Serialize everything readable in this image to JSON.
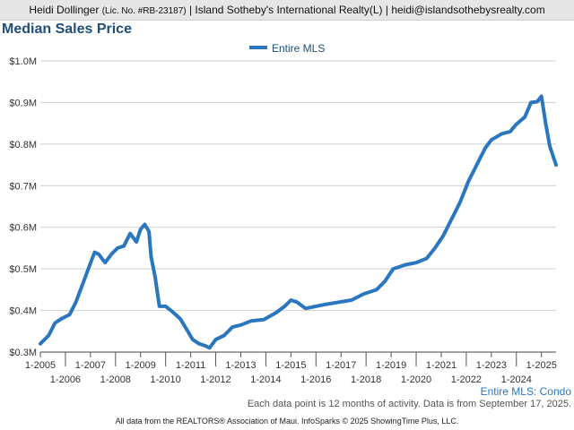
{
  "header": {
    "agent_name": "Heidi Dollinger",
    "license": "(Lic. No. #RB-23187)",
    "brokerage": "| Island Sotheby's International Realty(L) |",
    "email": "heidi@islandsothebysrealty.com"
  },
  "footer": {
    "segment": "Entire MLS: Condo",
    "note": "Each data point is 12 months of activity. Data is from September 17, 2025.",
    "credit": "All data from the REALTORS® Association of Maui. InfoSparks © 2025 ShowingTime Plus, LLC."
  },
  "colors": {
    "series": "#2a77bf",
    "title": "#1f4e79"
  },
  "chart_data": {
    "type": "line",
    "title": "Median Sales Price",
    "legend": {
      "placement": "top-center"
    },
    "grid": true,
    "ylim": [
      300000,
      1000000
    ],
    "yticks": [
      {
        "value": 300000,
        "label": "$0.3M"
      },
      {
        "value": 400000,
        "label": "$0.4M"
      },
      {
        "value": 500000,
        "label": "$0.5M"
      },
      {
        "value": 600000,
        "label": "$0.6M"
      },
      {
        "value": 700000,
        "label": "$0.7M"
      },
      {
        "value": 800000,
        "label": "$0.8M"
      },
      {
        "value": 900000,
        "label": "$0.9M"
      },
      {
        "value": 1000000,
        "label": "$1.0M"
      }
    ],
    "xlim": [
      "2005-01",
      "2025-08"
    ],
    "xticks": [
      "1-2005",
      "1-2006",
      "1-2007",
      "1-2008",
      "1-2009",
      "1-2010",
      "1-2011",
      "1-2012",
      "1-2013",
      "1-2014",
      "1-2015",
      "1-2016",
      "1-2017",
      "1-2018",
      "1-2019",
      "1-2020",
      "1-2021",
      "1-2022",
      "1-2023",
      "1-2024",
      "1-2025"
    ],
    "series": [
      {
        "name": "Entire MLS",
        "points": [
          [
            "2005-01",
            320000
          ],
          [
            "2005-05",
            340000
          ],
          [
            "2005-08",
            370000
          ],
          [
            "2005-11",
            380000
          ],
          [
            "2006-03",
            390000
          ],
          [
            "2006-06",
            420000
          ],
          [
            "2006-09",
            460000
          ],
          [
            "2006-12",
            500000
          ],
          [
            "2007-03",
            540000
          ],
          [
            "2007-05",
            535000
          ],
          [
            "2007-08",
            515000
          ],
          [
            "2007-11",
            535000
          ],
          [
            "2008-02",
            550000
          ],
          [
            "2008-05",
            555000
          ],
          [
            "2008-08",
            585000
          ],
          [
            "2008-11",
            565000
          ],
          [
            "2009-01",
            595000
          ],
          [
            "2009-03",
            607000
          ],
          [
            "2009-05",
            590000
          ],
          [
            "2009-06",
            530000
          ],
          [
            "2009-08",
            480000
          ],
          [
            "2009-10",
            410000
          ],
          [
            "2010-01",
            410000
          ],
          [
            "2010-04",
            398000
          ],
          [
            "2010-08",
            380000
          ],
          [
            "2010-11",
            355000
          ],
          [
            "2011-02",
            330000
          ],
          [
            "2011-05",
            320000
          ],
          [
            "2011-08",
            315000
          ],
          [
            "2011-10",
            310000
          ],
          [
            "2012-01",
            330000
          ],
          [
            "2012-05",
            340000
          ],
          [
            "2012-09",
            360000
          ],
          [
            "2013-01",
            365000
          ],
          [
            "2013-06",
            375000
          ],
          [
            "2013-12",
            378000
          ],
          [
            "2014-06",
            395000
          ],
          [
            "2014-10",
            410000
          ],
          [
            "2015-01",
            425000
          ],
          [
            "2015-04",
            420000
          ],
          [
            "2015-08",
            405000
          ],
          [
            "2016-01",
            410000
          ],
          [
            "2016-06",
            415000
          ],
          [
            "2016-12",
            420000
          ],
          [
            "2017-06",
            425000
          ],
          [
            "2017-12",
            440000
          ],
          [
            "2018-06",
            450000
          ],
          [
            "2018-10",
            470000
          ],
          [
            "2019-02",
            500000
          ],
          [
            "2019-08",
            510000
          ],
          [
            "2020-01",
            515000
          ],
          [
            "2020-06",
            525000
          ],
          [
            "2020-10",
            550000
          ],
          [
            "2021-02",
            580000
          ],
          [
            "2021-06",
            620000
          ],
          [
            "2021-10",
            660000
          ],
          [
            "2022-02",
            710000
          ],
          [
            "2022-06",
            750000
          ],
          [
            "2022-10",
            790000
          ],
          [
            "2023-01",
            810000
          ],
          [
            "2023-06",
            825000
          ],
          [
            "2023-10",
            830000
          ],
          [
            "2024-01",
            848000
          ],
          [
            "2024-05",
            865000
          ],
          [
            "2024-08",
            900000
          ],
          [
            "2024-11",
            902000
          ],
          [
            "2025-01",
            915000
          ],
          [
            "2025-03",
            850000
          ],
          [
            "2025-05",
            795000
          ],
          [
            "2025-08",
            750000
          ]
        ]
      }
    ]
  }
}
